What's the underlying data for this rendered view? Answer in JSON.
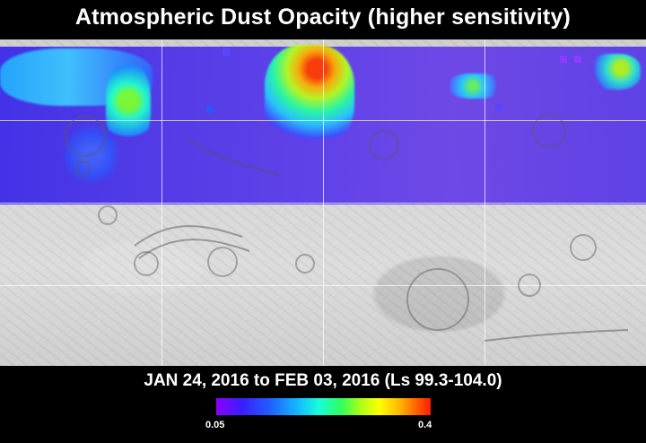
{
  "title": "Atmospheric Dust Opacity (higher sensitivity)",
  "date_range": "JAN 24, 2016 to FEB 03, 2016 (Ls 99.3-104.0)",
  "colorbar": {
    "min_label": "0.05",
    "max_label": "0.4",
    "colors": [
      "#8a00ff",
      "#3b1dff",
      "#1f5fff",
      "#13b9ff",
      "#17ffd8",
      "#2dff5f",
      "#a8ff18",
      "#ffff00",
      "#ffb300",
      "#ff5a00",
      "#ff1d00"
    ]
  }
}
